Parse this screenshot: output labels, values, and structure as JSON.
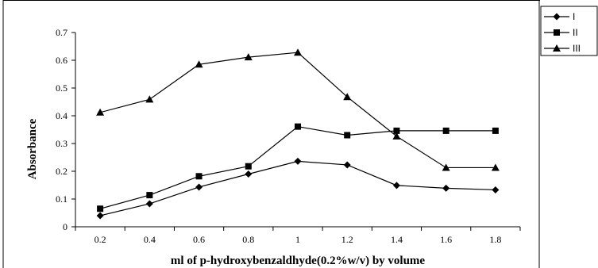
{
  "chart_data": {
    "type": "line",
    "title": "",
    "xlabel": "ml of p-hydroxybenzaldhyde(0.2%w/v) by volume",
    "ylabel": "Absorbance",
    "x": [
      0.2,
      0.4,
      0.6,
      0.8,
      1,
      1.2,
      1.4,
      1.6,
      1.8
    ],
    "x_tick_labels": [
      "0.2",
      "0.4",
      "0.6",
      "0.8",
      "1",
      "1.2",
      "1.4",
      "1.6",
      "1.8"
    ],
    "y_tick_labels": [
      "0",
      "0.1",
      "0.2",
      "0.3",
      "0.4",
      "0.5",
      "0.6",
      "0.7"
    ],
    "ylim": [
      0,
      0.7
    ],
    "grid": false,
    "legend_position": "top-right",
    "series": [
      {
        "name": "I",
        "marker": "diamond",
        "color": "#000000",
        "values": [
          0.04,
          0.083,
          0.143,
          0.19,
          0.236,
          0.223,
          0.149,
          0.139,
          0.133
        ]
      },
      {
        "name": "II",
        "marker": "square",
        "color": "#000000",
        "values": [
          0.065,
          0.114,
          0.182,
          0.218,
          0.361,
          0.33,
          0.346,
          0.346,
          0.346
        ]
      },
      {
        "name": "III",
        "marker": "triangle",
        "color": "#000000",
        "values": [
          0.412,
          0.459,
          0.585,
          0.611,
          0.628,
          0.468,
          0.326,
          0.213,
          0.213
        ]
      }
    ]
  }
}
